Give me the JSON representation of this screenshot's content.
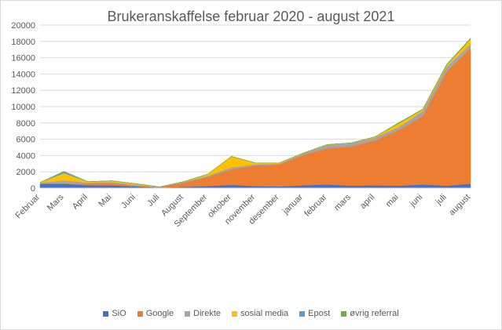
{
  "chart_data": {
    "type": "area",
    "stacked": true,
    "title": "Brukeranskaffelse februar 2020 - august 2021",
    "xlabel": "",
    "ylabel": "",
    "ylim": [
      0,
      20000
    ],
    "yticks": [
      0,
      2000,
      4000,
      6000,
      8000,
      10000,
      12000,
      14000,
      16000,
      18000,
      20000
    ],
    "grid": true,
    "legend_position": "bottom",
    "categories": [
      "Februar",
      "Mars",
      "April",
      "Mai",
      "Juni",
      "Juli",
      "August",
      "September",
      "oktober",
      "november",
      "desember",
      "januar",
      "februar",
      "mars",
      "april",
      "mai",
      "juni",
      "juli",
      "august"
    ],
    "series": [
      {
        "name": "SiO",
        "color": "#4472C4",
        "values": [
          550,
          550,
          350,
          350,
          200,
          50,
          150,
          250,
          400,
          250,
          200,
          350,
          450,
          300,
          350,
          300,
          450,
          300,
          550
        ]
      },
      {
        "name": "Google",
        "color": "#ED7D31",
        "values": [
          0,
          0,
          200,
          250,
          100,
          50,
          500,
          1100,
          1900,
          2500,
          2700,
          3700,
          4450,
          4800,
          5500,
          6800,
          8400,
          14000,
          16600
        ]
      },
      {
        "name": "Direkte",
        "color": "#A5A5A5",
        "values": [
          100,
          400,
          150,
          150,
          100,
          50,
          100,
          150,
          250,
          150,
          100,
          200,
          400,
          400,
          350,
          400,
          600,
          600,
          500
        ]
      },
      {
        "name": "sosial media",
        "color": "#FFC000",
        "values": [
          50,
          900,
          100,
          150,
          150,
          0,
          50,
          200,
          1350,
          200,
          100,
          50,
          50,
          50,
          100,
          450,
          200,
          200,
          650
        ]
      },
      {
        "name": "Epost",
        "color": "#5B9BD5",
        "values": [
          0,
          200,
          0,
          0,
          0,
          0,
          0,
          0,
          0,
          0,
          0,
          0,
          0,
          0,
          0,
          0,
          0,
          0,
          0
        ]
      },
      {
        "name": "øvrig referral",
        "color": "#70AD47",
        "values": [
          0,
          0,
          0,
          0,
          0,
          0,
          0,
          0,
          0,
          0,
          0,
          0,
          0,
          0,
          0,
          100,
          50,
          100,
          100
        ]
      }
    ]
  }
}
